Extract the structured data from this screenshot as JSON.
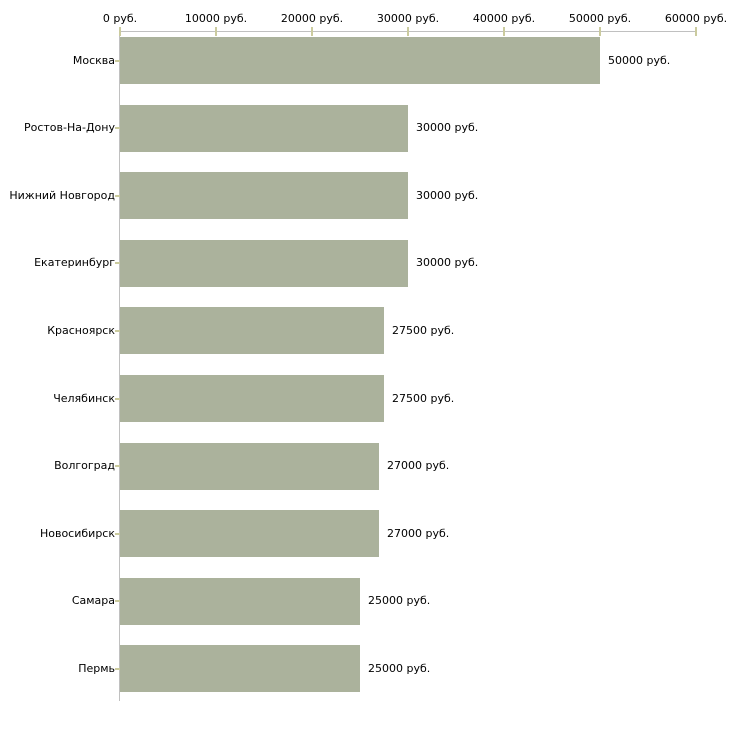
{
  "chart_data": {
    "type": "bar",
    "orientation": "horizontal",
    "title": "",
    "xlabel": "",
    "ylabel": "",
    "unit": "руб.",
    "xlim": [
      0,
      60000
    ],
    "grid": false,
    "legend": false,
    "categories": [
      "Москва",
      "Ростов-На-Дону",
      "Нижний Новгород",
      "Екатеринбург",
      "Красноярск",
      "Челябинск",
      "Волгоград",
      "Новосибирск",
      "Самара",
      "Пермь"
    ],
    "values": [
      50000,
      30000,
      30000,
      30000,
      27500,
      27500,
      27000,
      27000,
      25000,
      25000
    ],
    "value_labels": [
      "50000 руб.",
      "30000 руб.",
      "30000 руб.",
      "30000 руб.",
      "27500 руб.",
      "27500 руб.",
      "27000 руб.",
      "27000 руб.",
      "25000 руб.",
      "25000 руб."
    ],
    "x_ticks": [
      0,
      10000,
      20000,
      30000,
      40000,
      50000,
      60000
    ],
    "x_tick_labels": [
      "0 руб.",
      "10000 руб.",
      "20000 руб.",
      "30000 руб.",
      "40000 руб.",
      "50000 руб.",
      "60000 руб."
    ],
    "colors": {
      "bar": "#abb29c",
      "axis": "#c0c0c0",
      "tick": "#cbcb9e",
      "text": "#000000",
      "background": "#ffffff"
    }
  }
}
